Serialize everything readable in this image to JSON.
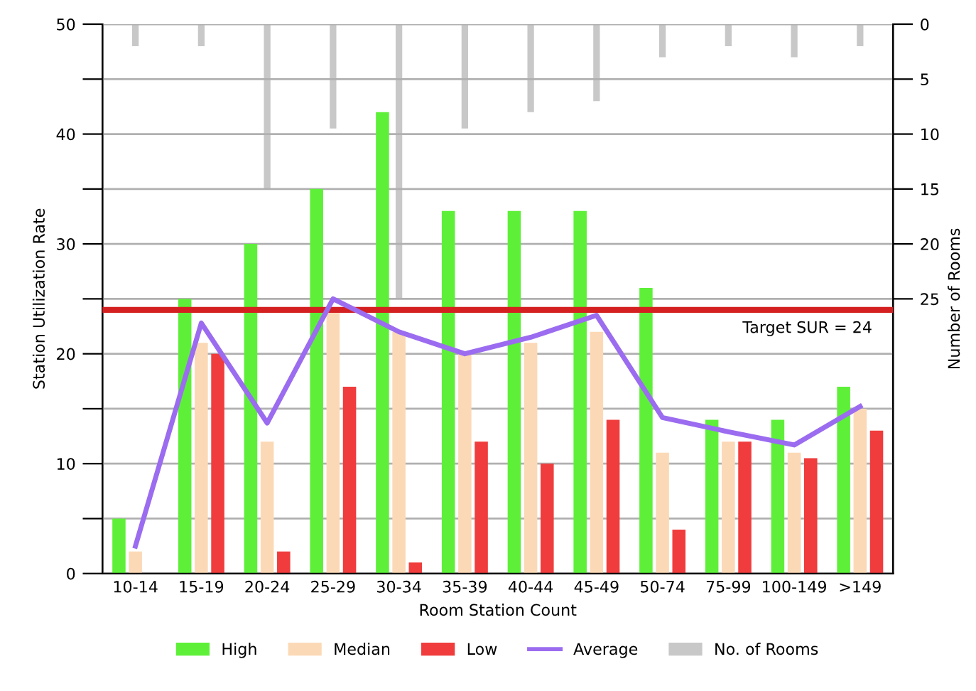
{
  "chart_data": {
    "type": "bar",
    "xlabel": "Room Station Count",
    "ylabel": "Station Utilization Rate",
    "y2label": "Number of Rooms",
    "categories": [
      "10-14",
      "15-19",
      "20-24",
      "25-29",
      "30-34",
      "35-39",
      "40-44",
      "45-49",
      "50-74",
      "75-99",
      "100-149",
      ">149"
    ],
    "series": [
      {
        "name": "High",
        "color": "#5ef038",
        "values": [
          5,
          25,
          30,
          35,
          42,
          33,
          33,
          33,
          26,
          14,
          14,
          17
        ]
      },
      {
        "name": "Median",
        "color": "#fcd9b6",
        "values": [
          2,
          21,
          12,
          24,
          22,
          20,
          21,
          22,
          11,
          12,
          11,
          15
        ]
      },
      {
        "name": "Low",
        "color": "#f03c3c",
        "values": [
          0,
          20,
          2,
          17,
          1,
          12,
          10,
          14,
          4,
          12,
          10.5,
          13
        ]
      },
      {
        "name": "Average",
        "type": "line",
        "color": "#9b6cf0",
        "values": [
          2.5,
          22.8,
          13.7,
          25,
          22,
          20,
          21.5,
          23.5,
          14.2,
          12.9,
          11.7,
          15.2
        ]
      },
      {
        "name": "No. of Rooms",
        "axis": "y2",
        "color": "#c8c8c8",
        "values": [
          2,
          2,
          15,
          9.5,
          25,
          9.5,
          8,
          7,
          3,
          2,
          3,
          2
        ]
      }
    ],
    "ylim": [
      0,
      50
    ],
    "yticks": [
      0,
      {
        "value": 5,
        "label": null
      },
      10,
      {
        "value": 15,
        "label": null
      },
      20,
      {
        "value": 25,
        "label": null
      },
      30,
      {
        "value": 35,
        "label": null
      },
      40,
      {
        "value": 45,
        "label": null
      },
      50
    ],
    "y2lim": [
      50,
      0
    ],
    "y2ticks": [
      0,
      5,
      10,
      15,
      20,
      25
    ],
    "ref_lines": [
      {
        "axis": "y",
        "value": 24,
        "label": "Target SUR = 24",
        "color": "#d42020"
      }
    ],
    "grid": "y",
    "legend": "bottom"
  }
}
